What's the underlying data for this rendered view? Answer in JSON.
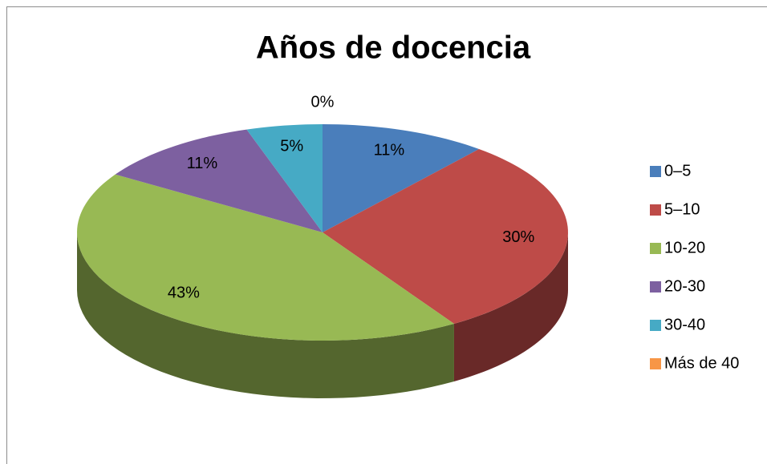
{
  "chart_data": {
    "type": "pie",
    "title": "Años de docencia",
    "categories": [
      "0–5",
      "5–10",
      "10-20",
      "20-30",
      "30-40",
      "Más de 40"
    ],
    "values": [
      11,
      30,
      43,
      11,
      5,
      0
    ],
    "value_labels": [
      "11%",
      "30%",
      "43%",
      "11%",
      "5%",
      "0%"
    ],
    "colors": [
      "#4a7ebb",
      "#be4b48",
      "#98b954",
      "#7d60a0",
      "#46aac5",
      "#f79646"
    ],
    "legend": "right"
  }
}
